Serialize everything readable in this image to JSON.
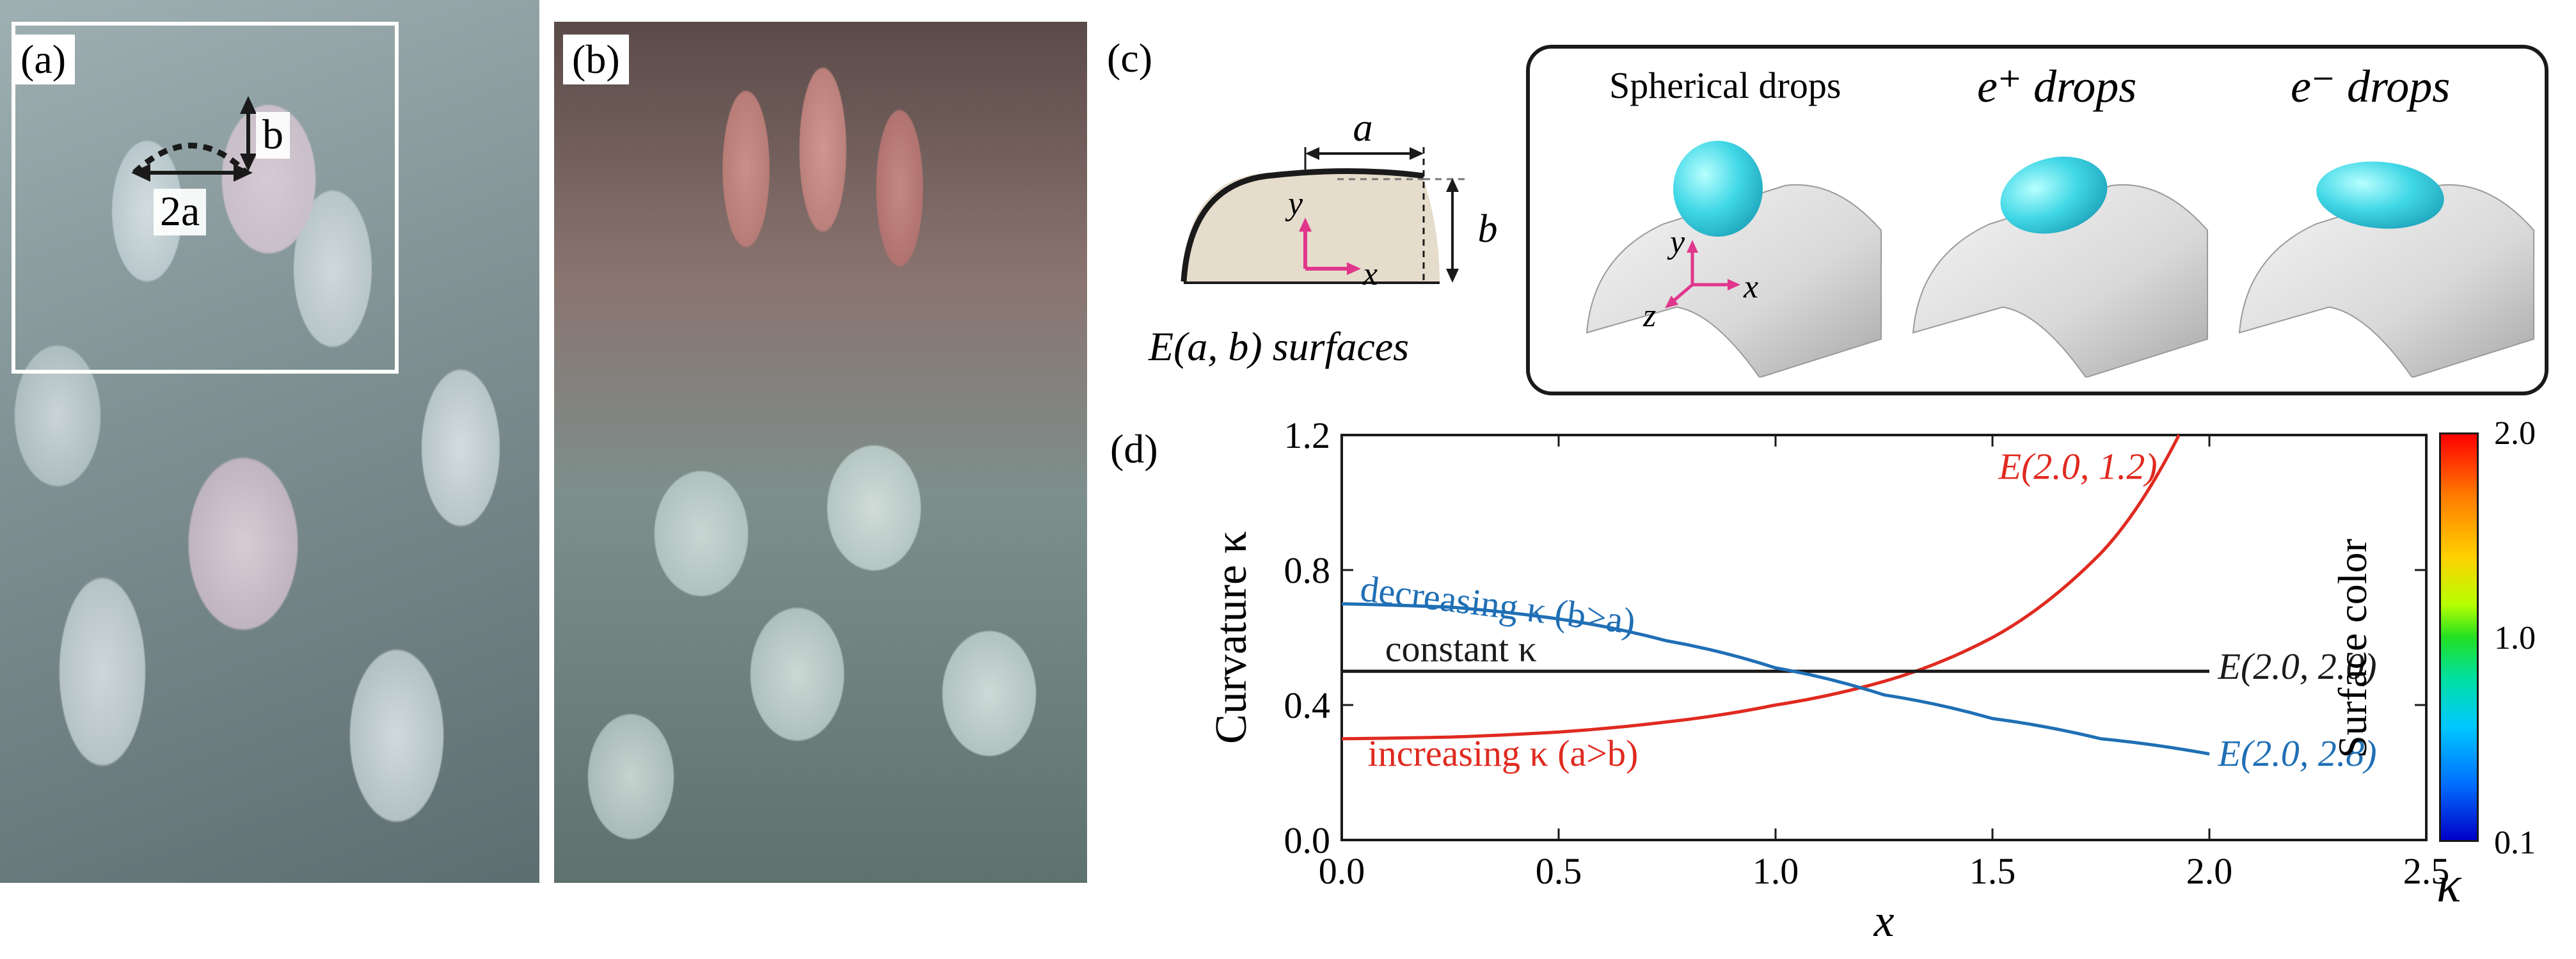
{
  "panels": {
    "a": {
      "label": "(a)",
      "tag_b": "b",
      "tag_2a": "2a"
    },
    "b": {
      "label": "(b)"
    },
    "c": {
      "label": "(c)",
      "axis_a": "a",
      "axis_b": "b",
      "axis_x": "x",
      "axis_y": "y",
      "caption": "E(a, b) surfaces",
      "drops": [
        {
          "label": "Spherical drops"
        },
        {
          "label": "e⁺ drops"
        },
        {
          "label": "e⁻ drops"
        }
      ],
      "coord_x": "x",
      "coord_y": "y",
      "coord_z": "z"
    },
    "d": {
      "label": "(d)"
    }
  },
  "colorbar": {
    "title": "Surface color",
    "ticks": [
      "2.0",
      "1.0",
      "0.1"
    ],
    "symbol": "κ"
  },
  "chart_data": {
    "type": "line",
    "xlabel": "x",
    "ylabel": "Curvature  κ",
    "xlim": [
      0.0,
      2.5
    ],
    "ylim": [
      0.0,
      1.2
    ],
    "xticks": [
      "0.0",
      "0.5",
      "1.0",
      "1.5",
      "2.0",
      "2.5"
    ],
    "yticks": [
      "0.0",
      "0.4",
      "0.8",
      "1.2"
    ],
    "series": [
      {
        "name": "E(2.0, 1.2)",
        "annotation": "increasing κ (a>b)",
        "color": "#e02a20",
        "x": [
          0.0,
          0.25,
          0.5,
          0.75,
          1.0,
          1.25,
          1.5,
          1.75,
          1.93
        ],
        "y": [
          0.3,
          0.305,
          0.32,
          0.35,
          0.4,
          0.47,
          0.6,
          0.85,
          1.2
        ]
      },
      {
        "name": "E(2.0, 2.0)",
        "annotation": "constant κ",
        "color": "#1a1a1a",
        "x": [
          0.0,
          2.0
        ],
        "y": [
          0.5,
          0.5
        ]
      },
      {
        "name": "E(2.0, 2.8)",
        "annotation": "decreasing κ (b>a)",
        "color": "#1f6fb5",
        "x": [
          0.0,
          0.25,
          0.5,
          0.75,
          1.0,
          1.25,
          1.5,
          1.75,
          2.0
        ],
        "y": [
          0.7,
          0.69,
          0.655,
          0.59,
          0.51,
          0.43,
          0.36,
          0.3,
          0.255
        ]
      }
    ]
  }
}
